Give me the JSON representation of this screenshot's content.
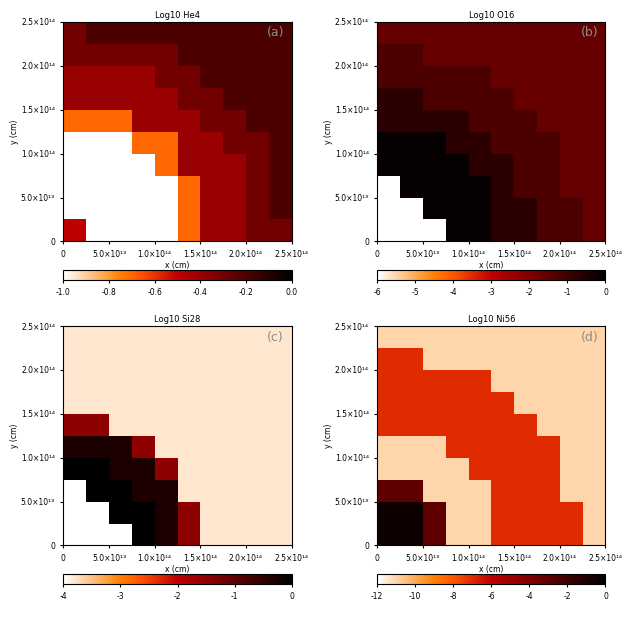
{
  "chart_data": [
    {
      "type": "heatmap",
      "title": "Log10 He4",
      "annotation": "(a)",
      "x_label": "x (cm)",
      "y_label": "y (cm)",
      "xlim": [
        0,
        250000000000000
      ],
      "ylim": [
        0,
        250000000000000
      ],
      "xticks": [
        0,
        {
          "value": 50000000000000,
          "label": "5.0×10¹³"
        },
        {
          "value": 100000000000000,
          "label": "1.0×10¹⁴"
        },
        {
          "value": 150000000000000,
          "label": "1.5×10¹⁴"
        },
        {
          "value": 200000000000000,
          "label": "2.0×10¹⁴"
        },
        {
          "value": 250000000000000,
          "label": "2.5×10¹⁴"
        }
      ],
      "yticks": [
        0,
        {
          "value": 50000000000000,
          "label": "5.0×10¹³"
        },
        {
          "value": 100000000000000,
          "label": "1.0×10¹⁴"
        },
        {
          "value": 150000000000000,
          "label": "1.5×10¹⁴"
        },
        {
          "value": 200000000000000,
          "label": "2.0×10¹⁴"
        },
        {
          "value": 250000000000000,
          "label": "2.5×10¹⁴"
        }
      ],
      "color_range": [
        -1.0,
        0.0
      ],
      "colorbar_ticks": [
        -1.0,
        -0.8,
        -0.6,
        -0.4,
        -0.2,
        0.0
      ],
      "cells": [
        [
          -0.5,
          -1.0,
          -1.0,
          -1.0,
          -1.0,
          -0.7,
          -0.4,
          -0.4,
          -0.3,
          -0.3
        ],
        [
          -1.0,
          -1.0,
          -1.0,
          -1.0,
          -1.0,
          -0.7,
          -0.4,
          -0.4,
          -0.3,
          -0.2
        ],
        [
          -1.0,
          -1.0,
          -1.0,
          -1.0,
          -1.0,
          -0.7,
          -0.4,
          -0.4,
          -0.3,
          -0.2
        ],
        [
          -1.0,
          -1.0,
          -1.0,
          -1.0,
          -0.7,
          -0.4,
          -0.4,
          -0.4,
          -0.3,
          -0.2
        ],
        [
          -1.0,
          -1.0,
          -1.0,
          -0.7,
          -0.7,
          -0.4,
          -0.4,
          -0.3,
          -0.3,
          -0.2
        ],
        [
          -0.7,
          -0.7,
          -0.7,
          -0.4,
          -0.4,
          -0.4,
          -0.3,
          -0.3,
          -0.2,
          -0.2
        ],
        [
          -0.4,
          -0.4,
          -0.4,
          -0.4,
          -0.4,
          -0.3,
          -0.3,
          -0.2,
          -0.2,
          -0.2
        ],
        [
          -0.4,
          -0.4,
          -0.4,
          -0.4,
          -0.3,
          -0.3,
          -0.2,
          -0.2,
          -0.2,
          -0.2
        ],
        [
          -0.3,
          -0.3,
          -0.3,
          -0.3,
          -0.3,
          -0.2,
          -0.2,
          -0.2,
          -0.2,
          -0.2
        ],
        [
          -0.3,
          -0.2,
          -0.2,
          -0.2,
          -0.2,
          -0.2,
          -0.2,
          -0.2,
          -0.2,
          -0.2
        ]
      ]
    },
    {
      "type": "heatmap",
      "title": "Log10 O16",
      "annotation": "(b)",
      "x_label": "x (cm)",
      "y_label": "y (cm)",
      "xlim": [
        0,
        250000000000000
      ],
      "ylim": [
        0,
        250000000000000
      ],
      "xticks": [
        0,
        {
          "value": 50000000000000,
          "label": "5.0×10¹³"
        },
        {
          "value": 100000000000000,
          "label": "1.0×10¹⁴"
        },
        {
          "value": 150000000000000,
          "label": "1.5×10¹⁴"
        },
        {
          "value": 200000000000000,
          "label": "2.0×10¹⁴"
        },
        {
          "value": 250000000000000,
          "label": "2.5×10¹⁴"
        }
      ],
      "yticks": [
        0,
        {
          "value": 50000000000000,
          "label": "5.0×10¹³"
        },
        {
          "value": 100000000000000,
          "label": "1.0×10¹⁴"
        },
        {
          "value": 150000000000000,
          "label": "1.5×10¹⁴"
        },
        {
          "value": 200000000000000,
          "label": "2.0×10¹⁴"
        },
        {
          "value": 250000000000000,
          "label": "2.5×10¹⁴"
        }
      ],
      "color_range": [
        -6,
        0
      ],
      "colorbar_ticks": [
        -6,
        -5,
        -4,
        -3,
        -2,
        -1,
        0
      ],
      "cells": [
        [
          -6,
          -6,
          -6,
          -0.1,
          -0.1,
          -0.7,
          -0.7,
          -1.2,
          -1.2,
          -1.6
        ],
        [
          -6,
          -6,
          -0.1,
          -0.1,
          -0.1,
          -0.7,
          -0.7,
          -1.2,
          -1.2,
          -1.6
        ],
        [
          -6,
          -0.1,
          -0.1,
          -0.1,
          -0.1,
          -0.7,
          -1.2,
          -1.2,
          -1.6,
          -1.6
        ],
        [
          -0.1,
          -0.1,
          -0.1,
          -0.1,
          -0.7,
          -0.7,
          -1.2,
          -1.2,
          -1.6,
          -1.6
        ],
        [
          -0.1,
          -0.1,
          -0.1,
          -0.7,
          -0.7,
          -1.2,
          -1.2,
          -1.2,
          -1.6,
          -1.6
        ],
        [
          -0.7,
          -0.7,
          -0.7,
          -0.7,
          -1.2,
          -1.2,
          -1.2,
          -1.6,
          -1.6,
          -1.6
        ],
        [
          -0.7,
          -0.7,
          -1.2,
          -1.2,
          -1.2,
          -1.2,
          -1.6,
          -1.6,
          -1.6,
          -1.6
        ],
        [
          -1.2,
          -1.2,
          -1.2,
          -1.2,
          -1.2,
          -1.6,
          -1.6,
          -1.6,
          -1.6,
          -1.6
        ],
        [
          -1.2,
          -1.2,
          -1.6,
          -1.6,
          -1.6,
          -1.6,
          -1.6,
          -1.6,
          -1.6,
          -1.6
        ],
        [
          -1.6,
          -1.6,
          -1.6,
          -1.6,
          -1.6,
          -1.6,
          -1.6,
          -1.6,
          -1.6,
          -1.6
        ]
      ]
    },
    {
      "type": "heatmap",
      "title": "Log10 Si28",
      "annotation": "(c)",
      "x_label": "x (cm)",
      "y_label": "y (cm)",
      "xlim": [
        0,
        250000000000000
      ],
      "ylim": [
        0,
        250000000000000
      ],
      "xticks": [
        0,
        {
          "value": 50000000000000,
          "label": "5.0×10¹³"
        },
        {
          "value": 100000000000000,
          "label": "1.0×10¹⁴"
        },
        {
          "value": 150000000000000,
          "label": "1.5×10¹⁴"
        },
        {
          "value": 200000000000000,
          "label": "2.0×10¹⁴"
        },
        {
          "value": 250000000000000,
          "label": "2.5×10¹⁴"
        }
      ],
      "yticks": [
        0,
        {
          "value": 50000000000000,
          "label": "5.0×10¹³"
        },
        {
          "value": 100000000000000,
          "label": "1.0×10¹⁴"
        },
        {
          "value": 150000000000000,
          "label": "1.5×10¹⁴"
        },
        {
          "value": 200000000000000,
          "label": "2.0×10¹⁴"
        },
        {
          "value": 250000000000000,
          "label": "2.5×10¹⁴"
        }
      ],
      "color_range": [
        -4,
        0
      ],
      "colorbar_ticks": [
        -4,
        -3,
        -2,
        -1,
        0
      ],
      "cells": [
        [
          -4,
          -4,
          -4,
          0,
          -0.3,
          -1.5,
          -3.8,
          -3.8,
          -3.8,
          -3.8
        ],
        [
          -4,
          -4,
          0,
          0,
          -0.3,
          -1.5,
          -3.8,
          -3.8,
          -3.8,
          -3.8
        ],
        [
          -4,
          0,
          0,
          -0.3,
          -0.3,
          -3.8,
          -3.8,
          -3.8,
          -3.8,
          -3.8
        ],
        [
          0,
          0,
          -0.3,
          -0.3,
          -1.5,
          -3.8,
          -3.8,
          -3.8,
          -3.8,
          -3.8
        ],
        [
          -0.3,
          -0.3,
          -0.3,
          -1.5,
          -3.8,
          -3.8,
          -3.8,
          -3.8,
          -3.8,
          -3.8
        ],
        [
          -1.5,
          -1.5,
          -3.8,
          -3.8,
          -3.8,
          -3.8,
          -3.8,
          -3.8,
          -3.8,
          -3.8
        ],
        [
          -3.8,
          -3.8,
          -3.8,
          -3.8,
          -3.8,
          -3.8,
          -3.8,
          -3.8,
          -3.8,
          -3.8
        ],
        [
          -3.8,
          -3.8,
          -3.8,
          -3.8,
          -3.8,
          -3.8,
          -3.8,
          -3.8,
          -3.8,
          -3.8
        ],
        [
          -3.8,
          -3.8,
          -3.8,
          -3.8,
          -3.8,
          -3.8,
          -3.8,
          -3.8,
          -3.8,
          -3.8
        ],
        [
          -3.8,
          -3.8,
          -3.8,
          -3.8,
          -3.8,
          -3.8,
          -3.8,
          -3.8,
          -3.8,
          -3.8
        ]
      ]
    },
    {
      "type": "heatmap",
      "title": "Log10 Ni56",
      "annotation": "(d)",
      "x_label": "x (cm)",
      "y_label": "y (cm)",
      "xlim": [
        0,
        250000000000000
      ],
      "ylim": [
        0,
        250000000000000
      ],
      "xticks": [
        0,
        {
          "value": 50000000000000,
          "label": "5.0×10¹³"
        },
        {
          "value": 100000000000000,
          "label": "1.0×10¹⁴"
        },
        {
          "value": 150000000000000,
          "label": "1.5×10¹⁴"
        },
        {
          "value": 200000000000000,
          "label": "2.0×10¹⁴"
        },
        {
          "value": 250000000000000,
          "label": "2.5×10¹⁴"
        }
      ],
      "yticks": [
        0,
        {
          "value": 50000000000000,
          "label": "5.0×10¹³"
        },
        {
          "value": 100000000000000,
          "label": "1.0×10¹⁴"
        },
        {
          "value": 150000000000000,
          "label": "1.5×10¹⁴"
        },
        {
          "value": 200000000000000,
          "label": "2.0×10¹⁴"
        },
        {
          "value": 250000000000000,
          "label": "2.5×10¹⁴"
        }
      ],
      "color_range": [
        -12,
        0
      ],
      "colorbar_ticks": [
        -12,
        -10,
        -8,
        -6,
        -4,
        -2,
        0
      ],
      "cells": [
        [
          -0.5,
          -0.5,
          -3,
          -11,
          -11,
          -7,
          -7,
          -7,
          -7,
          -11
        ],
        [
          -0.5,
          -0.5,
          -3,
          -11,
          -11,
          -7,
          -7,
          -7,
          -7,
          -11
        ],
        [
          -3,
          -3,
          -11,
          -11,
          -11,
          -7,
          -7,
          -7,
          -11,
          -11
        ],
        [
          -11,
          -11,
          -11,
          -11,
          -7,
          -7,
          -7,
          -7,
          -11,
          -11
        ],
        [
          -11,
          -11,
          -11,
          -7,
          -7,
          -7,
          -7,
          -7,
          -11,
          -11
        ],
        [
          -7,
          -7,
          -7,
          -7,
          -7,
          -7,
          -7,
          -11,
          -11,
          -11
        ],
        [
          -7,
          -7,
          -7,
          -7,
          -7,
          -7,
          -11,
          -11,
          -11,
          -11
        ],
        [
          -7,
          -7,
          -7,
          -7,
          -7,
          -11,
          -11,
          -11,
          -11,
          -11
        ],
        [
          -7,
          -7,
          -11,
          -11,
          -11,
          -11,
          -11,
          -11,
          -11,
          -11
        ],
        [
          -11,
          -11,
          -11,
          -11,
          -11,
          -11,
          -11,
          -11,
          -11,
          -11
        ]
      ]
    }
  ]
}
